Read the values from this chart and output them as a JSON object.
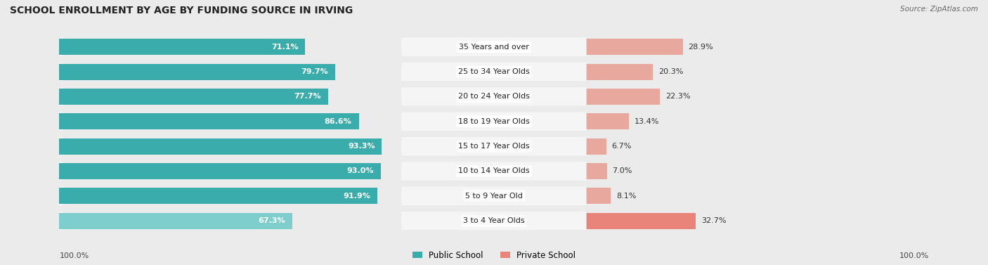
{
  "title": "SCHOOL ENROLLMENT BY AGE BY FUNDING SOURCE IN IRVING",
  "source": "Source: ZipAtlas.com",
  "categories": [
    "3 to 4 Year Olds",
    "5 to 9 Year Old",
    "10 to 14 Year Olds",
    "15 to 17 Year Olds",
    "18 to 19 Year Olds",
    "20 to 24 Year Olds",
    "25 to 34 Year Olds",
    "35 Years and over"
  ],
  "public_values": [
    67.3,
    91.9,
    93.0,
    93.3,
    86.6,
    77.7,
    79.7,
    71.1
  ],
  "private_values": [
    32.7,
    8.1,
    7.0,
    6.7,
    13.4,
    22.3,
    20.3,
    28.9
  ],
  "public_color_top": "#7ECECE",
  "public_color_rest": "#3AACAC",
  "private_color_top": "#E8847A",
  "private_color_rest": "#E8A89E",
  "public_label": "Public School",
  "private_label": "Private School",
  "bg_color": "#EBEBEB",
  "row_bg_color": "#F5F5F5",
  "title_fontsize": 10,
  "cat_fontsize": 8,
  "val_fontsize": 8,
  "axis_label_fontsize": 8,
  "left_axis_label": "100.0%",
  "right_axis_label": "100.0%"
}
